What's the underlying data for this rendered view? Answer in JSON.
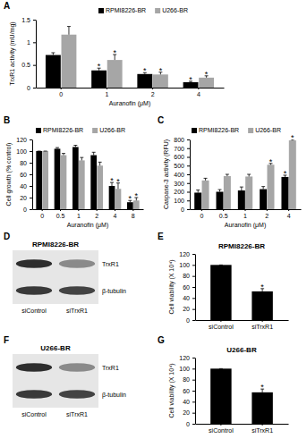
{
  "chart_data": [
    {
      "panel": "A",
      "type": "bar",
      "x_label": "Auranofin (μM)",
      "y_label": "TrxR1 activity (mU/mg)",
      "categories": [
        "0",
        "1",
        "2",
        "4"
      ],
      "series": [
        {
          "name": "RPMI8226-BR",
          "color": "#000000",
          "values": [
            0.72,
            0.38,
            0.3,
            0.12
          ],
          "errors": [
            0.05,
            0.05,
            0.03,
            0.02
          ],
          "significance": [
            null,
            "*",
            "*",
            "*"
          ]
        },
        {
          "name": "U266-BR",
          "color": "#a6a6a6",
          "values": [
            1.17,
            0.61,
            0.29,
            0.22
          ],
          "errors": [
            0.18,
            0.12,
            0.05,
            0.04
          ],
          "significance": [
            null,
            "*",
            "*",
            "*"
          ]
        }
      ],
      "ylim": [
        0,
        1.5
      ],
      "yticks": [
        0,
        0.5,
        1,
        1.5
      ],
      "legend": "top"
    },
    {
      "panel": "B",
      "type": "bar",
      "x_label": "Auranofin (μM)",
      "y_label": "Cell growth (% control)",
      "categories": [
        "0",
        "0.5",
        "1",
        "2",
        "4",
        "8"
      ],
      "series": [
        {
          "name": "RPMI8226-BR",
          "color": "#000000",
          "values": [
            100,
            104,
            107,
            93,
            40,
            12
          ],
          "errors": [
            0,
            2,
            3,
            5,
            6,
            3
          ],
          "significance": [
            null,
            null,
            null,
            null,
            "*",
            "*"
          ]
        },
        {
          "name": "U266-BR",
          "color": "#a6a6a6",
          "values": [
            100,
            93,
            84,
            75,
            35,
            15
          ],
          "errors": [
            0,
            3,
            5,
            6,
            10,
            5
          ],
          "significance": [
            null,
            null,
            null,
            null,
            "*",
            "*"
          ]
        }
      ],
      "ylim": [
        0,
        120
      ],
      "yticks": [
        0,
        20,
        40,
        60,
        80,
        100,
        120
      ],
      "legend": "top"
    },
    {
      "panel": "C",
      "type": "bar",
      "x_label": "Auranofin (μM)",
      "y_label": "Caspase-3 activity (RFU)",
      "categories": [
        "0",
        "0.5",
        "1",
        "2",
        "4"
      ],
      "series": [
        {
          "name": "RPMI8226-BR",
          "color": "#000000",
          "values": [
            190,
            200,
            215,
            230,
            370
          ],
          "errors": [
            30,
            25,
            40,
            30,
            20
          ],
          "significance": [
            null,
            null,
            null,
            null,
            "*"
          ]
        },
        {
          "name": "U266-BR",
          "color": "#a6a6a6",
          "values": [
            330,
            380,
            375,
            510,
            790
          ],
          "errors": [
            25,
            20,
            25,
            15,
            10
          ],
          "significance": [
            null,
            null,
            null,
            "*",
            "*"
          ]
        }
      ],
      "ylim": [
        0,
        800
      ],
      "yticks": [
        0,
        100,
        200,
        300,
        400,
        500,
        600,
        700,
        800
      ],
      "legend": "top"
    },
    {
      "panel": "D",
      "type": "blot",
      "title": "RPMI8226-BR",
      "bands": [
        "TrxR1",
        "β-tubulin"
      ],
      "lanes": [
        "siControl",
        "siTrxR1"
      ]
    },
    {
      "panel": "E",
      "type": "bar",
      "title": "RPMI8226-BR",
      "y_label": "Cell viability (X 10⁴)",
      "categories": [
        "siControl",
        "siTrxR1"
      ],
      "values": [
        100,
        52
      ],
      "errors": [
        0,
        5
      ],
      "significance": [
        null,
        "*"
      ],
      "color": "#000000",
      "ylim": [
        0,
        120
      ],
      "yticks": [
        0,
        20,
        40,
        60,
        80,
        100,
        120
      ]
    },
    {
      "panel": "F",
      "type": "blot",
      "title": "U266-BR",
      "bands": [
        "TrxR1",
        "β-tubulin"
      ],
      "lanes": [
        "siControl",
        "siTrxR1"
      ]
    },
    {
      "panel": "G",
      "type": "bar",
      "title": "U266-BR",
      "y_label": "Cell viability (X 10⁴)",
      "categories": [
        "siControl",
        "siTrxR1"
      ],
      "values": [
        100,
        57
      ],
      "errors": [
        0,
        6
      ],
      "significance": [
        null,
        "*"
      ],
      "color": "#000000",
      "ylim": [
        0,
        120
      ],
      "yticks": [
        0,
        20,
        40,
        60,
        80,
        100,
        120
      ]
    }
  ]
}
